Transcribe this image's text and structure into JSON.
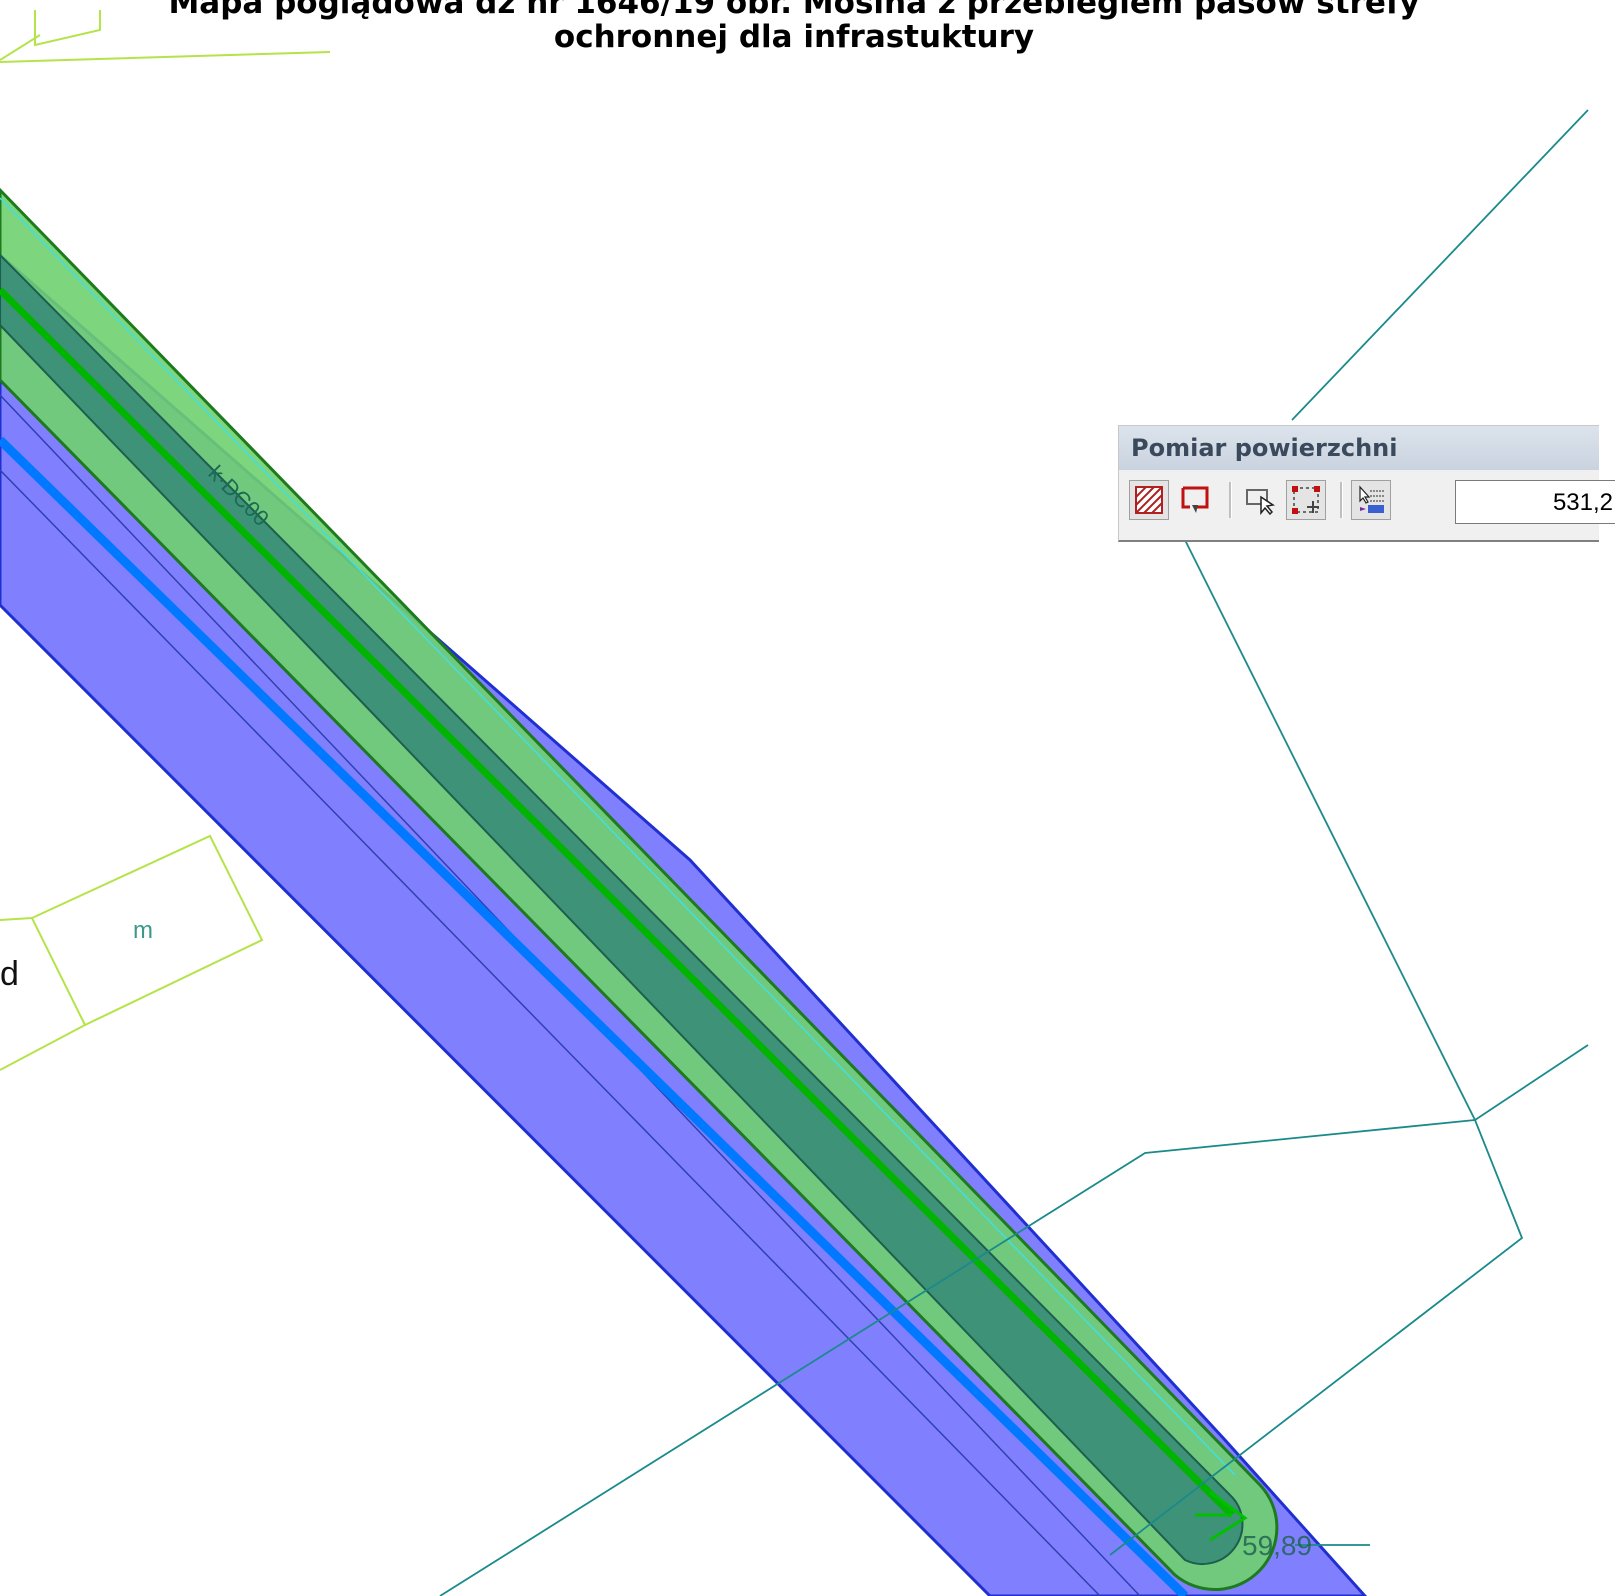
{
  "map": {
    "title_line1": "Mapa poglądowa dz nr 1646/19 obr. Mosina z przebiegiem pasów strefy",
    "title_line2": "ochronnej dla infrastuktury",
    "pipe_label": "k·DC00",
    "parcel_label_m": "m",
    "parcel_label_d": "d",
    "dimension_label": "59,89"
  },
  "panel": {
    "title": "Pomiar powierzchni",
    "area_value": "531,2",
    "tools": [
      "hatch-area-icon",
      "draw-polygon-icon",
      "select-object-icon",
      "point-select-icon",
      "list-select-icon"
    ]
  },
  "colors": {
    "green_zone": "#7fd87f",
    "dark_green_zone": "#3f967f",
    "blue_zone": "#8080ff",
    "pipe_green": "#00b400",
    "pipe_blue": "#0078ff",
    "parcel_teal": "#1a8a8a",
    "parcel_lime": "#a8e040"
  }
}
